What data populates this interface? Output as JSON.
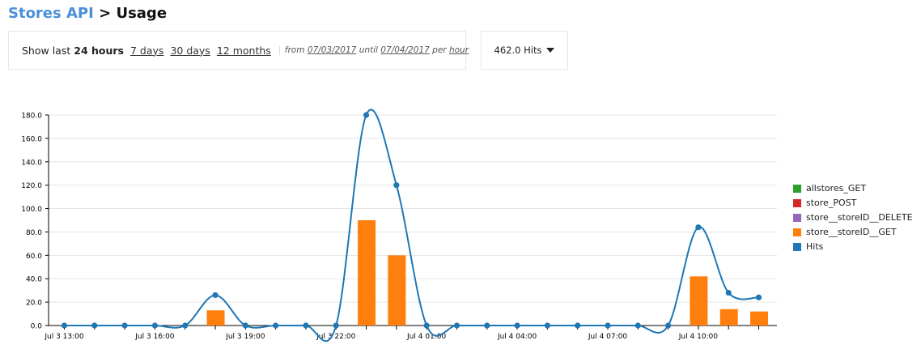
{
  "header": {
    "api_link": "Stores API",
    "separator": " > ",
    "page": "Usage"
  },
  "filter": {
    "show_last_label": "Show last",
    "current": "24 hours",
    "options": [
      "7 days",
      "30 days",
      "12 months"
    ],
    "from_label": "from",
    "from_date": "07/03/2017",
    "until_label": "until",
    "until_date": "07/04/2017",
    "per_label": "per",
    "per_unit": "hour"
  },
  "hits_dropdown": {
    "label": "462.0 Hits",
    "icon": "caret-down-icon"
  },
  "chart_data": {
    "type": "bar",
    "x_tick_labels": [
      "Jul 3 13:00",
      "Jul 3 16:00",
      "Jul 3 19:00",
      "Jul 3 22:00",
      "Jul 4 01:00",
      "Jul 4 04:00",
      "Jul 4 07:00",
      "Jul 4 10:00"
    ],
    "y_tick_labels": [
      "0.0",
      "20.0",
      "40.0",
      "60.0",
      "80.0",
      "100.0",
      "120.0",
      "140.0",
      "160.0",
      "180.0"
    ],
    "ylim": [
      0,
      180
    ],
    "grid": true,
    "legend_position": "right",
    "categories": [
      "Jul 3 13:00",
      "Jul 3 14:00",
      "Jul 3 15:00",
      "Jul 3 16:00",
      "Jul 3 17:00",
      "Jul 3 18:00",
      "Jul 3 19:00",
      "Jul 3 20:00",
      "Jul 3 21:00",
      "Jul 3 22:00",
      "Jul 3 23:00",
      "Jul 4 00:00",
      "Jul 4 01:00",
      "Jul 4 02:00",
      "Jul 4 03:00",
      "Jul 4 04:00",
      "Jul 4 05:00",
      "Jul 4 06:00",
      "Jul 4 07:00",
      "Jul 4 08:00",
      "Jul 4 09:00",
      "Jul 4 10:00",
      "Jul 4 11:00",
      "Jul 4 12:00"
    ],
    "series": [
      {
        "name": "allstores_GET",
        "kind": "bar",
        "color": "#2ca02c",
        "values": [
          0,
          0,
          0,
          0,
          0,
          0,
          0,
          0,
          0,
          0,
          0,
          0,
          0,
          0,
          0,
          0,
          0,
          0,
          0,
          0,
          0,
          0,
          0,
          0
        ]
      },
      {
        "name": "store_POST",
        "kind": "bar",
        "color": "#d62728",
        "values": [
          0,
          0,
          0,
          0,
          0,
          0,
          0,
          0,
          0,
          0,
          0,
          0,
          0,
          0,
          0,
          0,
          0,
          0,
          0,
          0,
          0,
          0,
          0,
          0
        ]
      },
      {
        "name": "store__storeID__DELETE",
        "kind": "bar",
        "color": "#9467bd",
        "values": [
          0,
          0,
          0,
          0,
          0,
          0,
          0,
          0,
          0,
          0,
          0,
          0,
          0,
          0,
          0,
          0,
          0,
          0,
          0,
          0,
          0,
          0,
          0,
          0
        ]
      },
      {
        "name": "store__storeID__GET",
        "kind": "bar",
        "color": "#ff7f0e",
        "values": [
          0,
          0,
          0,
          0,
          0,
          13,
          0,
          0,
          0,
          0,
          90,
          60,
          0,
          0,
          0,
          0,
          0,
          0,
          0,
          0,
          0,
          42,
          14,
          12
        ]
      },
      {
        "name": "Hits",
        "kind": "line",
        "color": "#1f77b4",
        "values": [
          0,
          0,
          0,
          0,
          0,
          26,
          0,
          0,
          0,
          0,
          180,
          120,
          0,
          0,
          0,
          0,
          0,
          0,
          0,
          0,
          0,
          84,
          28,
          24
        ]
      }
    ]
  }
}
